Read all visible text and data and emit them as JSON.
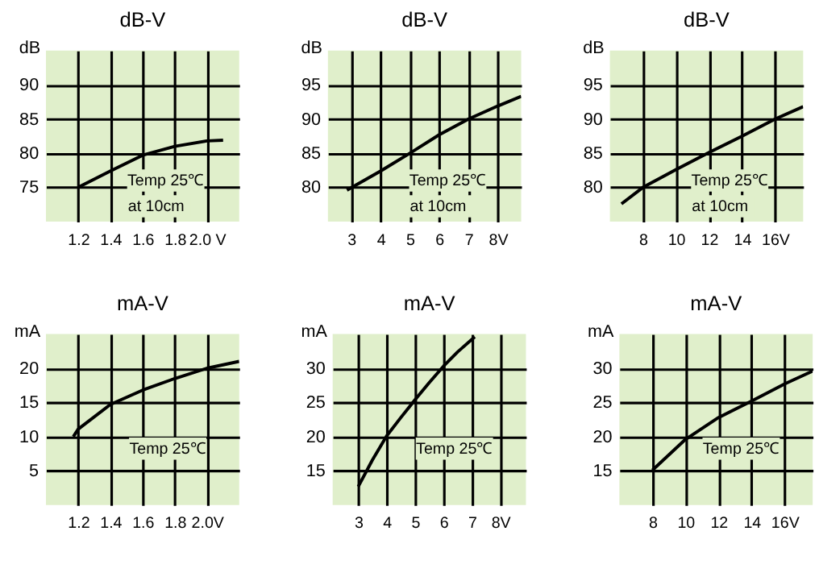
{
  "chart_data": [
    {
      "type": "line",
      "title": "dB-V",
      "ylabel": "dB",
      "xlim": [
        1.0,
        2.2
      ],
      "ylim": [
        70,
        95
      ],
      "xticks": [
        1.2,
        1.4,
        1.6,
        1.8,
        {
          "value": 2.0,
          "label": "2.0 V"
        }
      ],
      "yticks": [
        75,
        80,
        85,
        90
      ],
      "grid": true,
      "annotations": [
        "Temp 25℃",
        "at 10cm"
      ],
      "series": [
        {
          "color": "#000000",
          "x": [
            1.2,
            1.4,
            1.6,
            1.8,
            2.0,
            2.1
          ],
          "values": [
            75,
            77.4,
            79.7,
            81,
            81.8,
            81.9
          ]
        }
      ]
    },
    {
      "type": "line",
      "title": "dB-V",
      "ylabel": "dB",
      "xlim": [
        2.2,
        8.8
      ],
      "ylim": [
        75,
        100
      ],
      "xticks": [
        3,
        4,
        5,
        6,
        7,
        {
          "value": 8,
          "label": "8V"
        }
      ],
      "yticks": [
        80,
        85,
        90,
        95
      ],
      "grid": true,
      "annotations": [
        "Temp 25℃",
        "at 10cm"
      ],
      "series": [
        {
          "color": "#000000",
          "x": [
            2.85,
            4,
            5,
            6,
            7,
            8,
            8.8
          ],
          "values": [
            79.6,
            82.4,
            85,
            87.7,
            90,
            91.9,
            93.3
          ]
        }
      ]
    },
    {
      "type": "line",
      "title": "dB-V",
      "ylabel": "dB",
      "xlim": [
        6,
        17.7
      ],
      "ylim": [
        75,
        100
      ],
      "xticks": [
        8,
        10,
        12,
        14,
        {
          "value": 16,
          "label": "16V"
        }
      ],
      "yticks": [
        80,
        85,
        90,
        95
      ],
      "grid": true,
      "annotations": [
        "Temp 25℃",
        "at 10cm"
      ],
      "series": [
        {
          "color": "#000000",
          "x": [
            6.7,
            8,
            10,
            12,
            14,
            16,
            17.7
          ],
          "values": [
            77.6,
            80,
            82.6,
            85.1,
            87.5,
            90,
            91.8
          ]
        }
      ]
    },
    {
      "type": "line",
      "title": "mA-V",
      "ylabel": "mA",
      "xlim": [
        1.0,
        2.2
      ],
      "ylim": [
        0,
        25
      ],
      "xticks": [
        1.2,
        1.4,
        1.6,
        1.8,
        {
          "value": 2.0,
          "label": "2.0V"
        }
      ],
      "yticks": [
        5,
        10,
        15,
        20
      ],
      "grid": true,
      "annotations": [
        "Temp 25℃"
      ],
      "series": [
        {
          "color": "#000000",
          "x": [
            1.17,
            1.2,
            1.4,
            1.6,
            1.8,
            2.0,
            2.2
          ],
          "values": [
            10,
            11.1,
            14.7,
            16.8,
            18.5,
            20,
            21
          ]
        }
      ]
    },
    {
      "type": "line",
      "title": "mA-V",
      "ylabel": "mA",
      "xlim": [
        2.1,
        8.9
      ],
      "ylim": [
        10,
        35
      ],
      "xticks": [
        3,
        4,
        5,
        6,
        7,
        {
          "value": 8,
          "label": "8V"
        }
      ],
      "yticks": [
        15,
        20,
        25,
        30
      ],
      "grid": true,
      "annotations": [
        "Temp 25℃"
      ],
      "series": [
        {
          "color": "#000000",
          "x": [
            3,
            3.5,
            4,
            4.5,
            5,
            5.5,
            6,
            6.5,
            7.1
          ],
          "values": [
            12.7,
            16.6,
            20.1,
            22.8,
            25.4,
            27.9,
            30.3,
            32.4,
            34.6
          ]
        }
      ]
    },
    {
      "type": "line",
      "title": "mA-V",
      "ylabel": "mA",
      "xlim": [
        6,
        17.7
      ],
      "ylim": [
        10,
        35
      ],
      "xticks": [
        8,
        10,
        12,
        14,
        {
          "value": 16,
          "label": "16V"
        }
      ],
      "yticks": [
        15,
        20,
        25,
        30
      ],
      "grid": true,
      "annotations": [
        "Temp 25℃"
      ],
      "series": [
        {
          "color": "#000000",
          "x": [
            8,
            10,
            12,
            14,
            16,
            17.7
          ],
          "values": [
            15.1,
            19.6,
            22.8,
            25.2,
            27.7,
            29.6
          ]
        }
      ]
    }
  ]
}
